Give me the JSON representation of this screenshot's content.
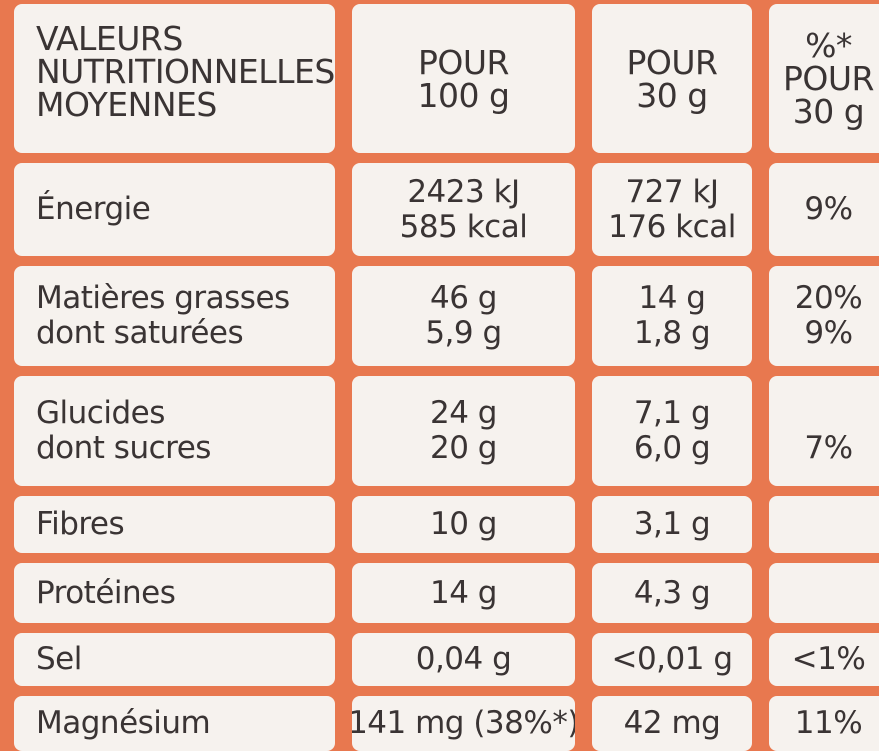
{
  "header": {
    "label": [
      "VALEURS",
      "NUTRITIONNELLES",
      "MOYENNES"
    ],
    "per100": [
      "POUR",
      "100 g"
    ],
    "per30": [
      "POUR",
      "30 g"
    ],
    "pct": [
      "%*",
      "POUR",
      "30 g"
    ]
  },
  "rows": [
    {
      "label": [
        "Énergie"
      ],
      "per100": [
        "2423 kJ",
        "585 kcal"
      ],
      "per30": [
        "727 kJ",
        "176 kcal"
      ],
      "pct": [
        "9%"
      ]
    },
    {
      "label": [
        "Matières grasses",
        "dont saturées"
      ],
      "per100": [
        "46 g",
        "5,9 g"
      ],
      "per30": [
        "14 g",
        "1,8 g"
      ],
      "pct": [
        "20%",
        "9%"
      ]
    },
    {
      "label": [
        "Glucides",
        "dont sucres"
      ],
      "per100": [
        "24 g",
        "20 g"
      ],
      "per30": [
        "7,1 g",
        "6,0 g"
      ],
      "pct": [
        "",
        "7%"
      ]
    },
    {
      "label": [
        "Fibres"
      ],
      "per100": [
        "10 g"
      ],
      "per30": [
        "3,1 g"
      ],
      "pct": [
        ""
      ]
    },
    {
      "label": [
        "Protéines"
      ],
      "per100": [
        "14 g"
      ],
      "per30": [
        "4,3 g"
      ],
      "pct": [
        ""
      ]
    },
    {
      "label": [
        "Sel"
      ],
      "per100": [
        "0,04 g"
      ],
      "per30": [
        "<0,01 g"
      ],
      "pct": [
        "<1%"
      ]
    },
    {
      "label": [
        "Magnésium"
      ],
      "per100": [
        "141 mg (38%*)"
      ],
      "per30": [
        "42 mg"
      ],
      "pct": [
        "11%"
      ]
    }
  ],
  "colors": {
    "background": "#e8784f",
    "cell": "#f6f2ee",
    "text": "#3a3434"
  }
}
